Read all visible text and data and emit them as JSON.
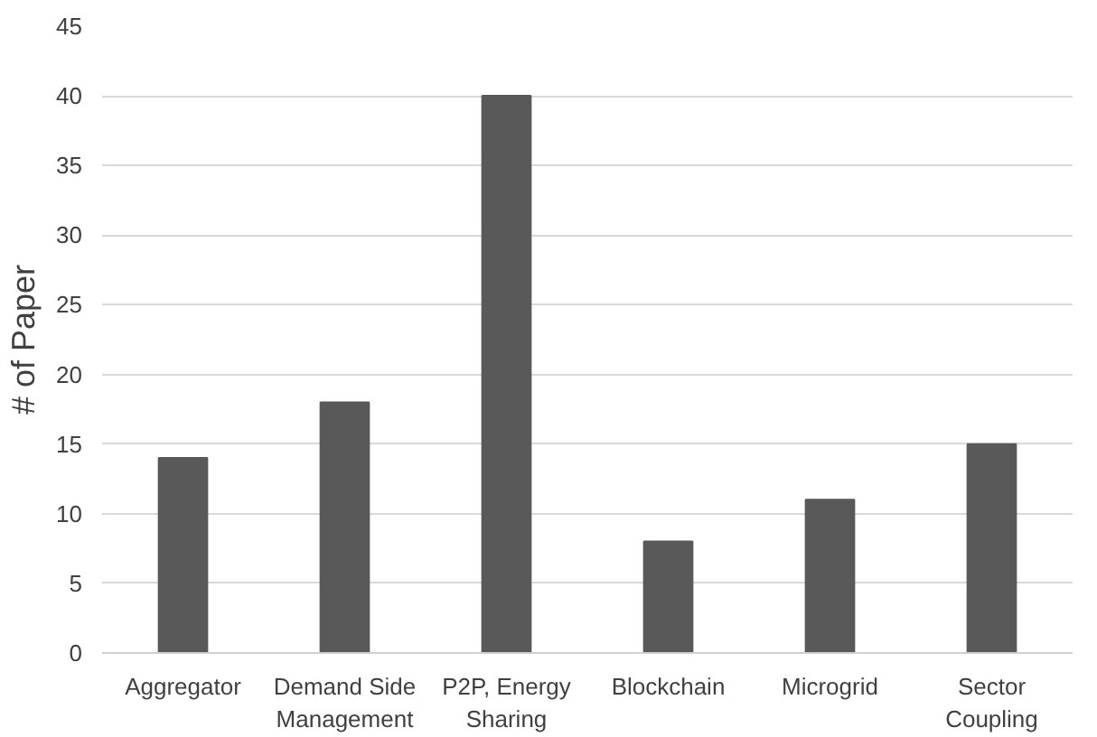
{
  "chart_data": {
    "type": "bar",
    "ylabel": "# of Paper",
    "categories": [
      "Aggregator",
      "Demand Side\nManagement",
      "P2P, Energy\nSharing",
      "Blockchain",
      "Microgrid",
      "Sector\nCoupling"
    ],
    "values": [
      14,
      18,
      40,
      8,
      11,
      15
    ],
    "color": "#595959",
    "ylim": [
      0,
      45
    ],
    "yticks": [
      0,
      5,
      10,
      15,
      20,
      25,
      30,
      35,
      40,
      45
    ],
    "grid": "y"
  }
}
